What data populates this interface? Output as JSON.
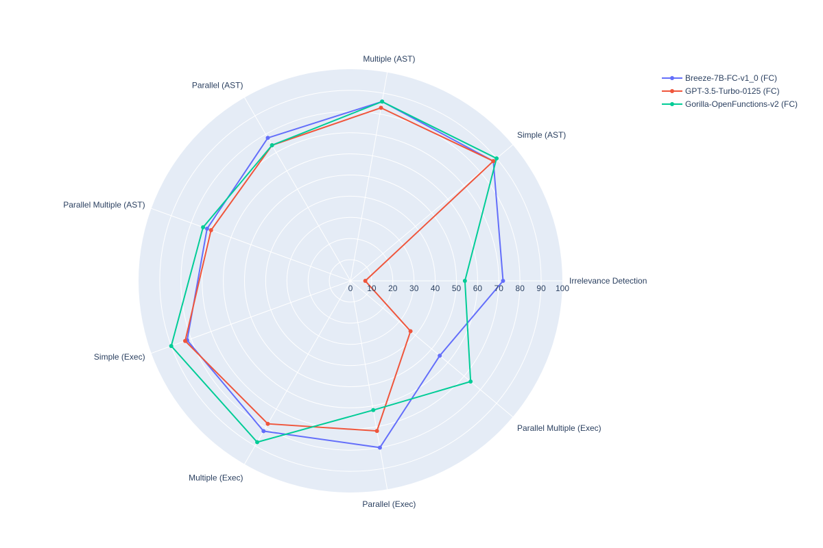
{
  "chart_data": {
    "type": "radar",
    "categories": [
      "Irrelevance Detection",
      "Simple (AST)",
      "Multiple (AST)",
      "Parallel (AST)",
      "Parallel Multiple (AST)",
      "Simple (Exec)",
      "Multiple (Exec)",
      "Parallel (Exec)",
      "Parallel Multiple (Exec)"
    ],
    "radial_range": [
      0,
      100
    ],
    "radial_ticks": [
      "0",
      "10",
      "20",
      "30",
      "40",
      "50",
      "60",
      "70",
      "80",
      "90",
      "100"
    ],
    "grid": true,
    "legend_position": "top-right",
    "series": [
      {
        "name": "Breeze-7B-FC-v1_0 (FC)",
        "color": "#636efa",
        "values": [
          72,
          88,
          86,
          78,
          72,
          82,
          82,
          80,
          55
        ]
      },
      {
        "name": "GPT-3.5-Turbo-0125 (FC)",
        "color": "#ef553b",
        "values": [
          7,
          88,
          83,
          74,
          70,
          83,
          78,
          72,
          37
        ]
      },
      {
        "name": "Gorilla-OpenFunctions-v2 (FC)",
        "color": "#00cc96",
        "values": [
          54,
          90,
          86,
          74,
          74,
          90,
          88,
          62,
          74
        ]
      }
    ]
  }
}
